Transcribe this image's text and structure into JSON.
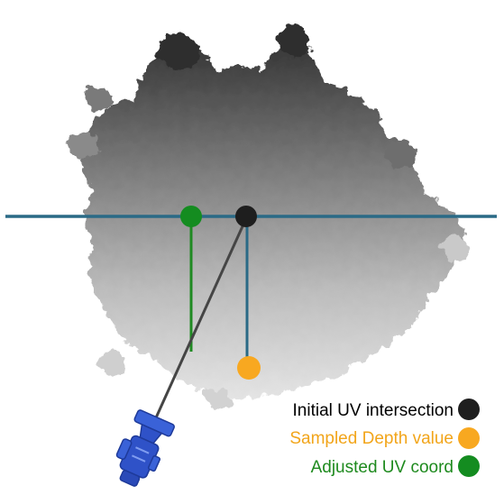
{
  "legend": {
    "initial": {
      "label": "Initial UV intersection",
      "color": "#000000",
      "marker_color": "#1e1e1e"
    },
    "sampled": {
      "label": "Sampled Depth value",
      "color": "#f2a51a",
      "marker_color": "#f8a820"
    },
    "adjusted": {
      "label": "Adjusted UV coord",
      "color": "#1e8a1e",
      "marker_color": "#148c20"
    }
  },
  "colors": {
    "plane_line": "#2a6a86",
    "ray": "#454545",
    "projection_line": "#2a6a86",
    "adjusted_line": "#1f8a22",
    "foliage_dark": "#3a3a3a",
    "foliage_light": "#d8d8d8",
    "camera": "#2f52c8",
    "camera_dark": "#1e3a9a"
  },
  "icons": {
    "tree": "foliage-silhouette",
    "camera": "camera-icon"
  }
}
